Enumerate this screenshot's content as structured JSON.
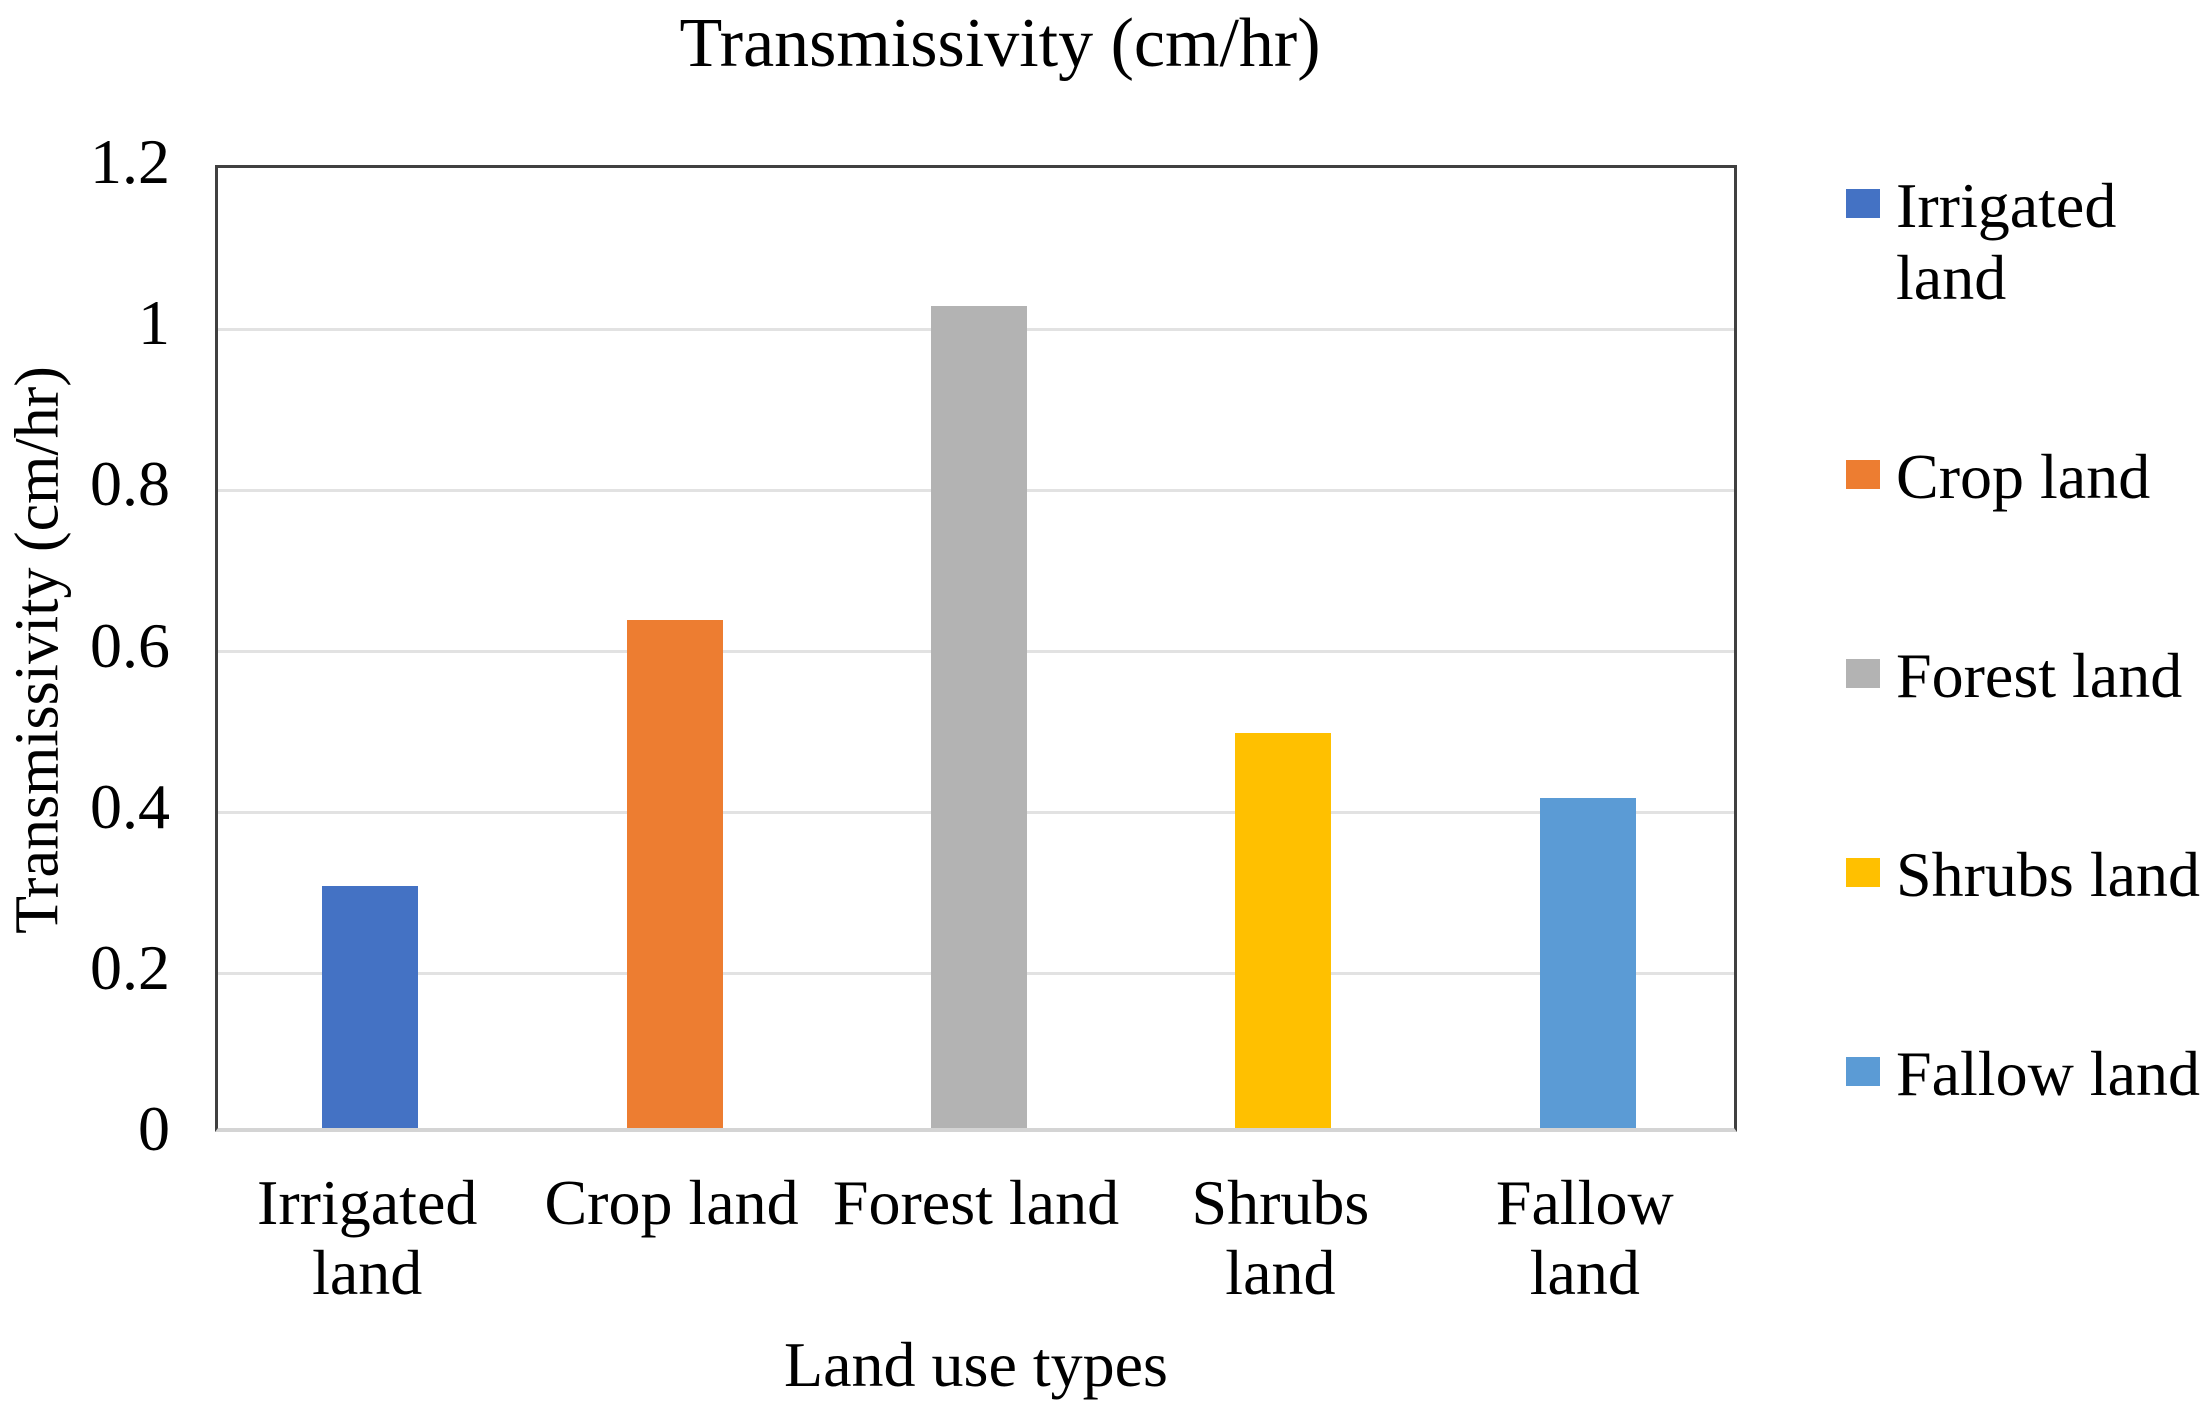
{
  "chart_data": {
    "type": "bar",
    "title": "Transmissivity (cm/hr)",
    "xlabel": "Land use types",
    "ylabel": "Transmissivity (cm/hr)",
    "categories": [
      "Irrigated land",
      "Crop land",
      "Forest land",
      "Shrubs land",
      "Fallow land"
    ],
    "xtick_labels": [
      "Irrigated\nland",
      "Crop land",
      "Forest land",
      "Shrubs\nland",
      "Fallow\nland"
    ],
    "values": [
      0.3,
      0.63,
      1.02,
      0.49,
      0.41
    ],
    "bar_colors": [
      "#4472C4",
      "#ED7D31",
      "#B3B3B3",
      "#FFC000",
      "#5B9BD5"
    ],
    "ylim": [
      0,
      1.2
    ],
    "ytick_step": 0.2,
    "yticks": [
      "0",
      "0.2",
      "0.4",
      "0.6",
      "0.8",
      "1",
      "1.2"
    ],
    "grid": "horizontal",
    "legend_position": "right",
    "legend": [
      {
        "label": "Irrigated land",
        "color": "#4472C4"
      },
      {
        "label": "Crop land",
        "color": "#ED7D31"
      },
      {
        "label": "Forest land",
        "color": "#B3B3B3"
      },
      {
        "label": "Shrubs land",
        "color": "#FFC000"
      },
      {
        "label": "Fallow land",
        "color": "#5B9BD5"
      }
    ],
    "colors": {
      "gridline": "#E2E2E2",
      "plot_border": "#404040",
      "axis_line": "#D4D4D4",
      "text": "#000000",
      "background": "#FFFFFF"
    }
  }
}
